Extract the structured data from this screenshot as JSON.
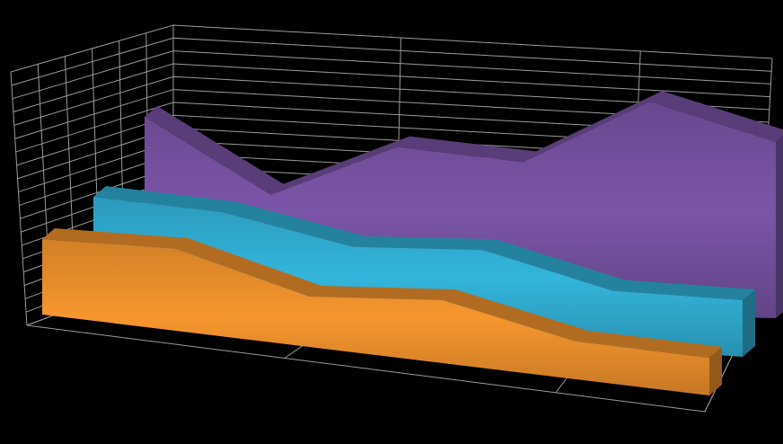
{
  "chart_data": {
    "type": "area3d",
    "categories": [
      null,
      null,
      null,
      null,
      null,
      null
    ],
    "series": [
      {
        "color": "#f7962e",
        "values": [
          6,
          6.5,
          4,
          5,
          3,
          3
        ]
      },
      {
        "color": "#33b5dc",
        "values": [
          9,
          8.5,
          6.5,
          7,
          4.5,
          4.5
        ]
      },
      {
        "color": "#7b55a8",
        "values": [
          15,
          9,
          13,
          12,
          17,
          14
        ]
      }
    ]
  }
}
